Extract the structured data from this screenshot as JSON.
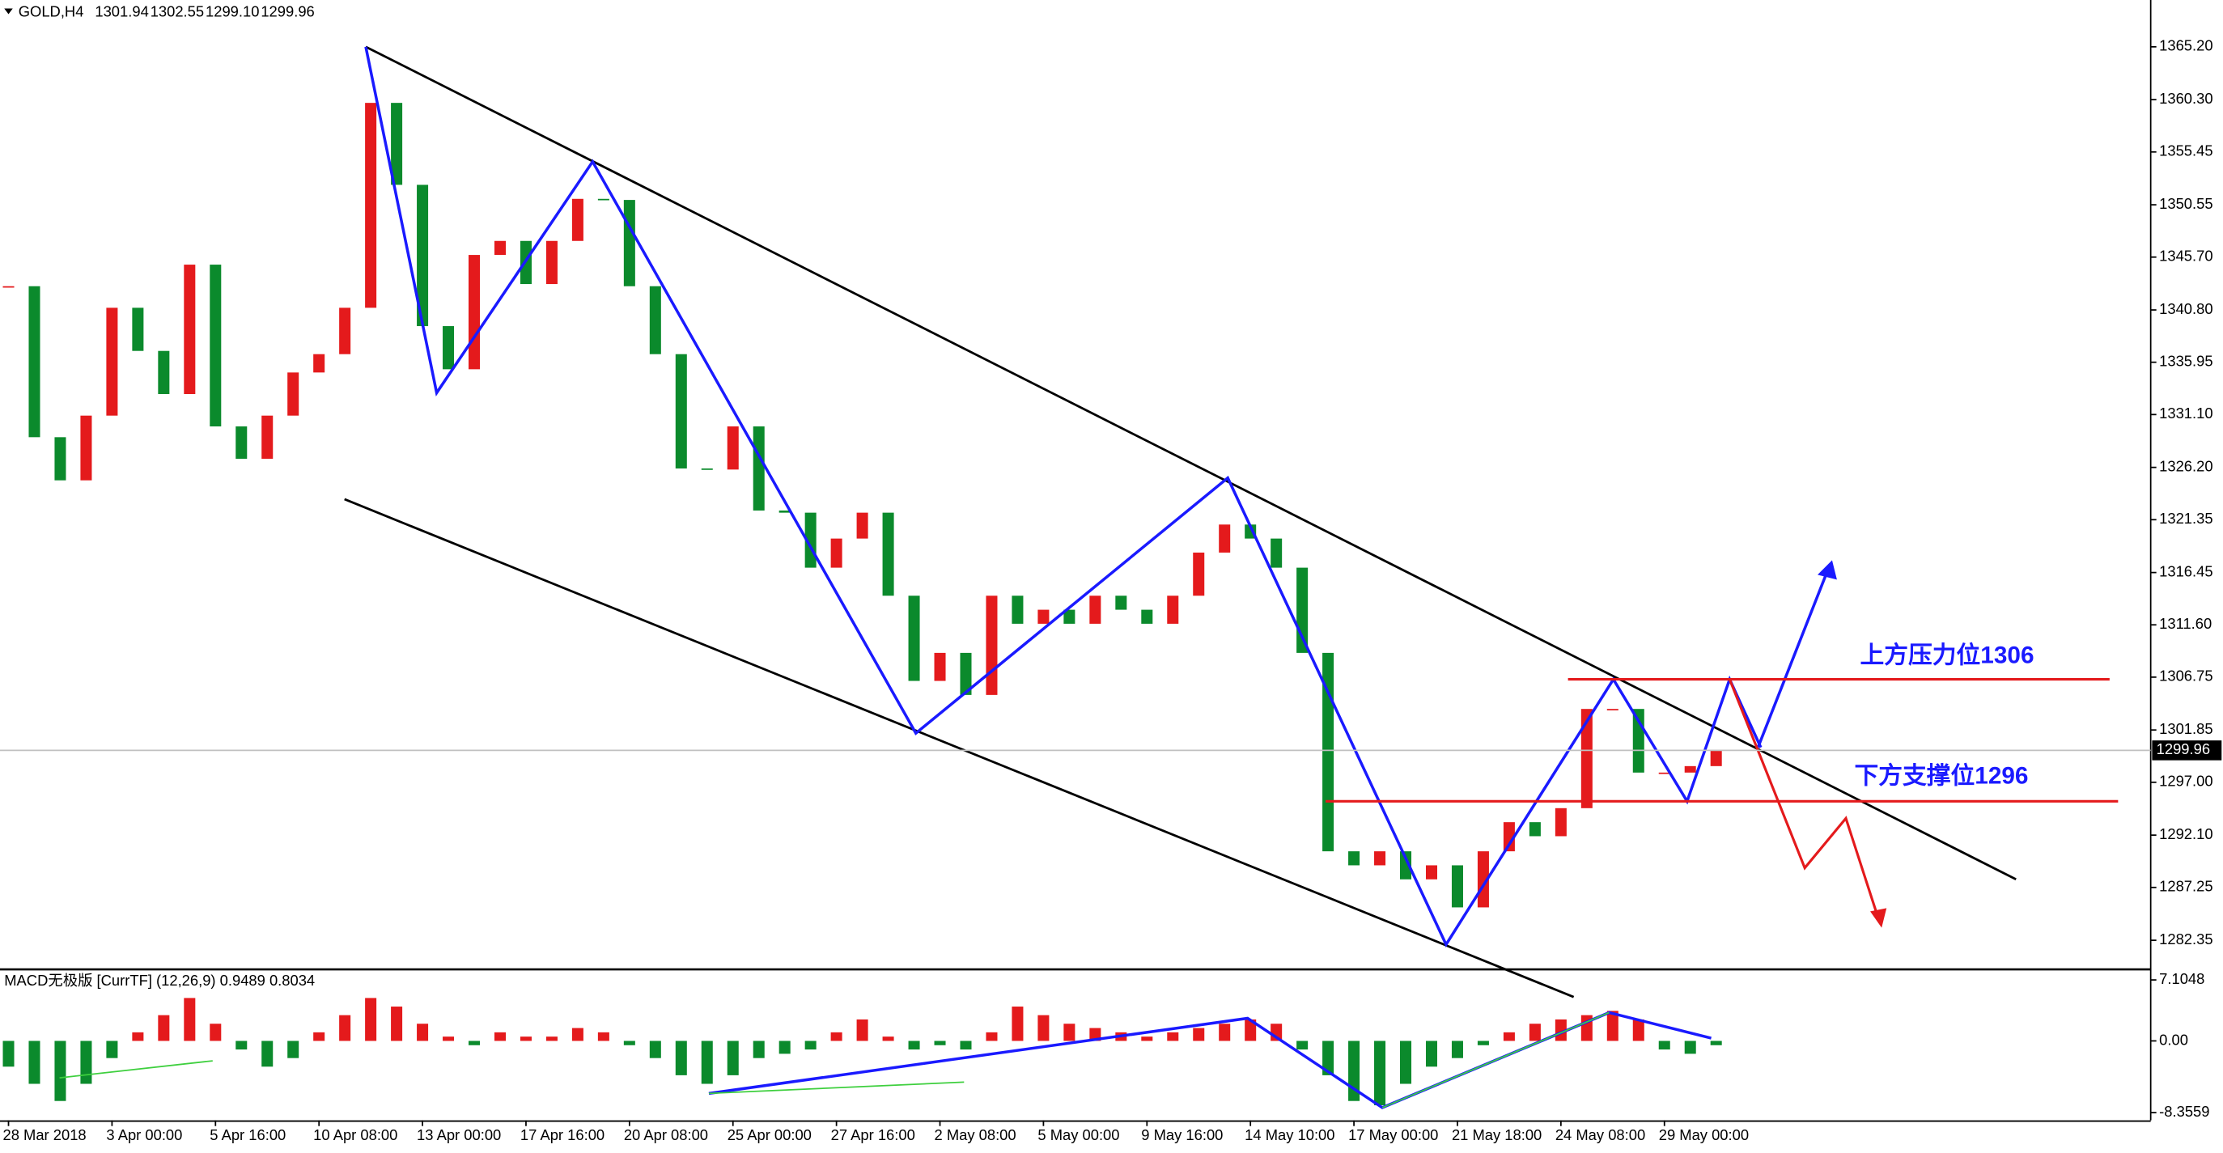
{
  "chart_data": {
    "type": "candlestick",
    "symbol": "GOLD,H4",
    "quote": [
      1301.94,
      1302.55,
      {
        "value": 1299.1,
        "label": "1299.10"
      },
      1299.96
    ],
    "current_price": 1299.96,
    "up_color": "#e41a1c",
    "down_color": "#0b8a2c",
    "ylim": [
      1279.72,
      1369.54
    ],
    "yticks": [
      {
        "value": 1365.2,
        "label": "1365.20"
      },
      {
        "value": 1360.3,
        "label": "1360.30"
      },
      {
        "value": 1355.45,
        "label": "1355.45"
      },
      {
        "value": 1350.55,
        "label": "1350.55"
      },
      {
        "value": 1345.7,
        "label": "1345.70"
      },
      {
        "value": 1340.8,
        "label": "1340.80"
      },
      {
        "value": 1335.95,
        "label": "1335.95"
      },
      {
        "value": 1331.1,
        "label": "1331.10"
      },
      {
        "value": 1326.2,
        "label": "1326.20"
      },
      {
        "value": 1321.35,
        "label": "1321.35"
      },
      {
        "value": 1316.45,
        "label": "1316.45"
      },
      {
        "value": 1311.6,
        "label": "1311.60"
      },
      {
        "value": 1306.75,
        "label": "1306.75"
      },
      {
        "value": 1301.85,
        "label": "1301.85"
      },
      {
        "value": 1297.0,
        "label": "1297.00"
      },
      {
        "value": 1292.1,
        "label": "1292.10"
      },
      {
        "value": 1287.25,
        "label": "1287.25"
      },
      {
        "value": 1282.35,
        "label": "1282.35"
      }
    ],
    "categories": [
      "28 Mar 2018",
      null,
      null,
      null,
      "3 Apr 00:00",
      null,
      null,
      null,
      "5 Apr 16:00",
      null,
      null,
      null,
      "10 Apr 08:00",
      null,
      null,
      null,
      "13 Apr 00:00",
      null,
      null,
      null,
      "17 Apr 16:00",
      null,
      null,
      null,
      "20 Apr 08:00",
      null,
      null,
      null,
      "25 Apr 00:00",
      null,
      null,
      null,
      "27 Apr 16:00",
      null,
      null,
      null,
      "2 May 08:00",
      null,
      null,
      null,
      "5 May 00:00",
      null,
      null,
      null,
      "9 May 16:00",
      null,
      null,
      null,
      "14 May 10:00",
      null,
      null,
      null,
      "17 May 00:00",
      null,
      null,
      null,
      "21 May 18:00",
      null,
      null,
      null,
      "24 May 08:00",
      null,
      null,
      null,
      "29 May 00:00",
      null,
      null
    ],
    "closes": [
      1343,
      1329,
      1325,
      1331,
      1341,
      1337,
      1333,
      1345,
      1330,
      1327,
      1331,
      1335,
      1336.7,
      1341,
      1360,
      1352.4,
      1339.3,
      1335.3,
      1345.9,
      1347.2,
      1343.2,
      1347.2,
      1351.1,
      1351,
      1343,
      1336.7,
      1326.1,
      1326,
      1330,
      1322.2,
      1322,
      1316.9,
      1319.6,
      1322,
      1314.3,
      1306.4,
      1309,
      1305.1,
      1314.3,
      1311.7,
      1313,
      1311.7,
      1314.3,
      1313,
      1311.7,
      1314.3,
      1318.3,
      1320.9,
      1319.6,
      1316.9,
      1309,
      1290.6,
      1289.3,
      1290.6,
      1288,
      1289.3,
      1285.4,
      1290.6,
      1293.3,
      1292,
      1294.6,
      1303.8,
      1303.8,
      1297.9,
      1297.9,
      1298.5,
      1299.96
    ],
    "annotations": [
      "上方压力位1306",
      "下方支撑位1296"
    ],
    "macd": {
      "label": "MACD无极版 [CurrTF] (12,26,9) 0.9489 0.8034",
      "ylim": [
        -9.26,
        8.09
      ],
      "yticks": [
        7.1048,
        {
          "value": 0,
          "label": "0.00"
        },
        -8.3559
      ],
      "histogram": [
        -3,
        -5,
        -7,
        -5,
        -2,
        1,
        3,
        5,
        2,
        -1,
        -3,
        -2,
        1,
        3,
        5,
        4,
        2,
        0.5,
        -0.5,
        1,
        0.5,
        0.5,
        1.5,
        1,
        -0.5,
        -2,
        -4,
        -5,
        -4,
        -2,
        -1.5,
        -1,
        1,
        2.5,
        0.5,
        -1,
        -0.5,
        -1,
        1,
        4,
        3,
        2,
        1.5,
        1,
        0.5,
        1,
        1.5,
        2,
        2.5,
        2,
        -1,
        -4,
        -7,
        -7.5,
        -5,
        -3,
        -2,
        -0.5,
        1,
        2,
        2.5,
        3,
        3.5,
        2.5,
        -1,
        -1.5,
        -0.5
      ]
    }
  }
}
